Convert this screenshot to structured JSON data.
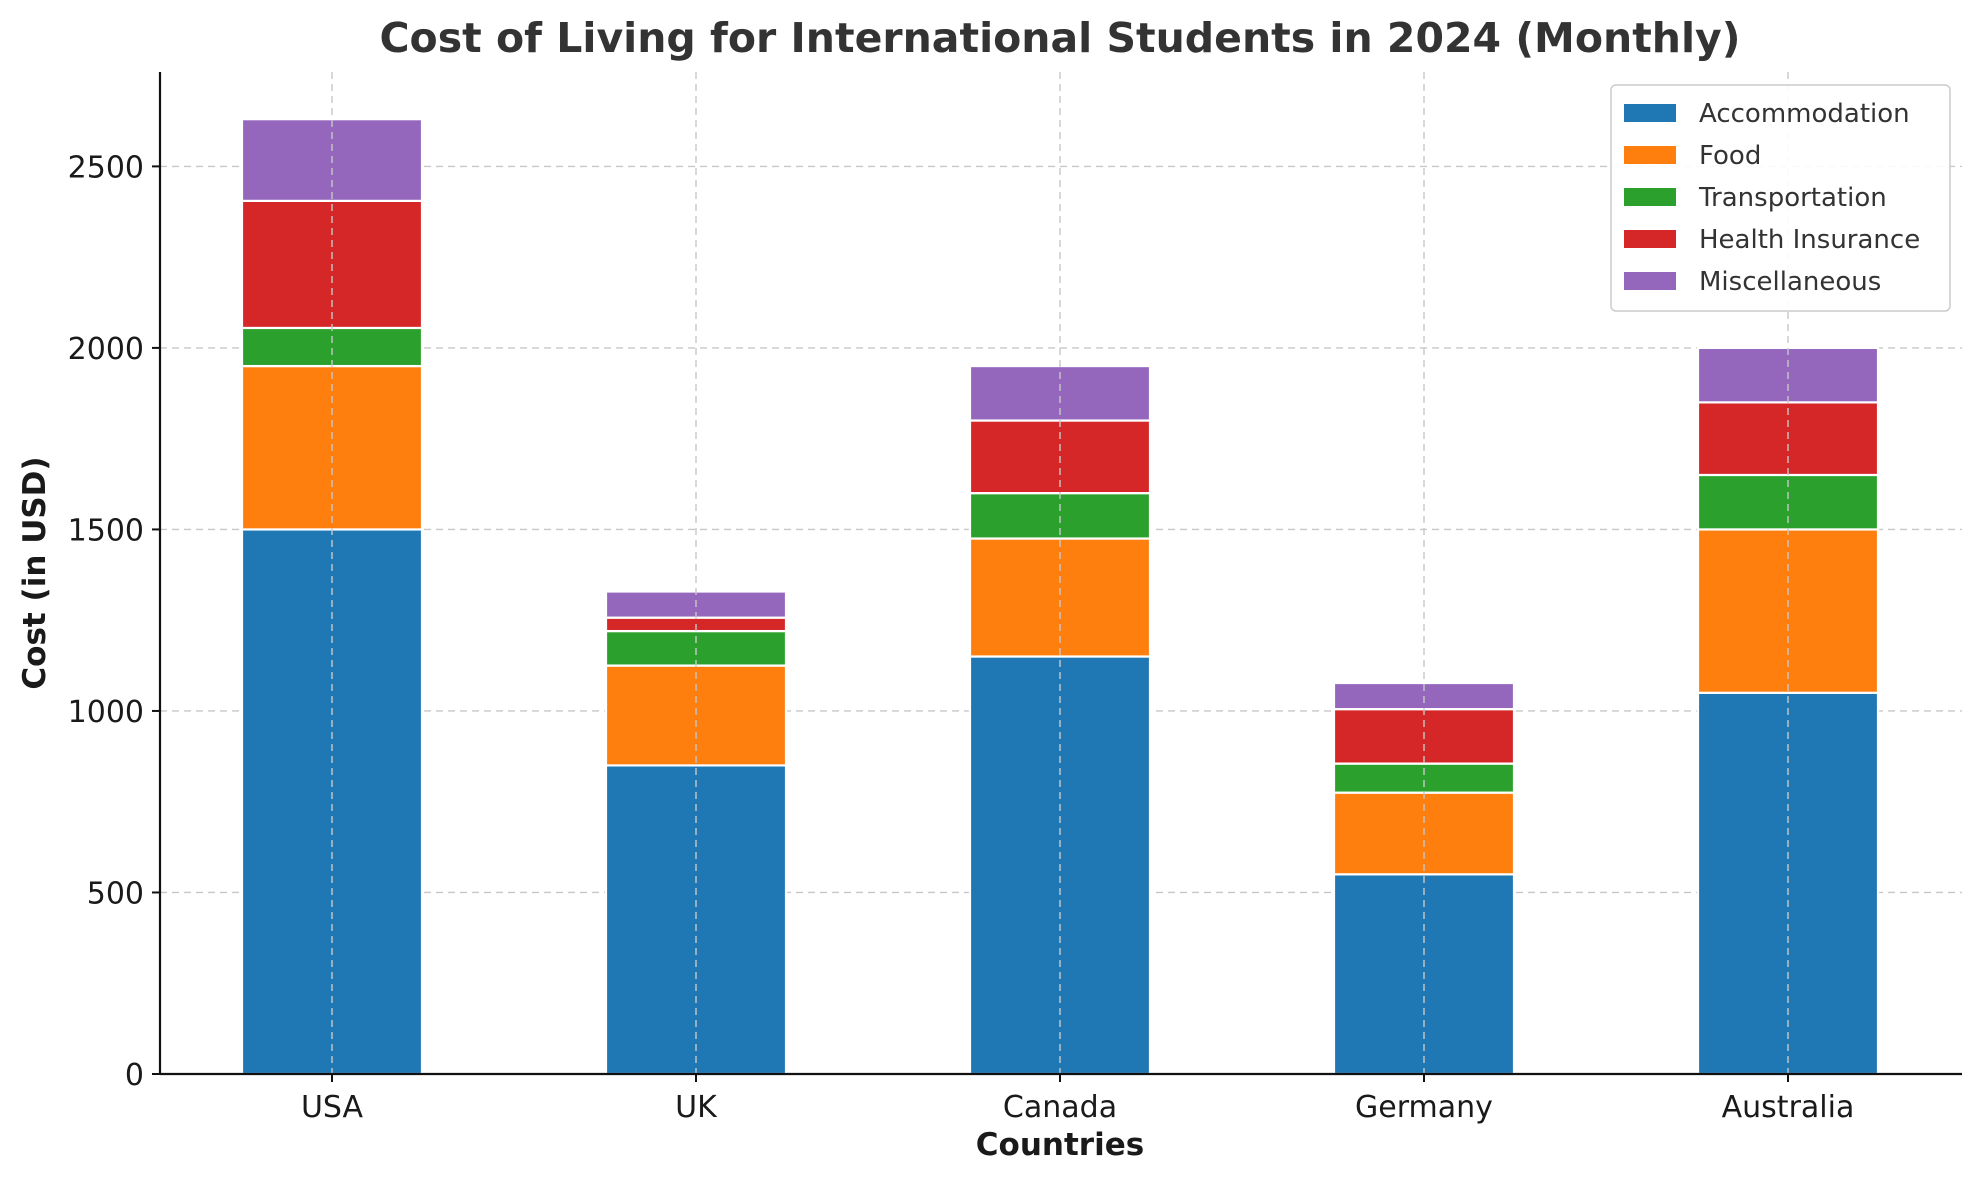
{
  "chart_data": {
    "type": "bar",
    "stacked": true,
    "title": "Cost of Living for International Students in 2024 (Monthly)",
    "xlabel": "Countries",
    "ylabel": "Cost (in USD)",
    "categories": [
      "USA",
      "UK",
      "Canada",
      "Germany",
      "Australia"
    ],
    "series": [
      {
        "name": "Accommodation",
        "color": "#1f77b4",
        "values": [
          1500,
          850,
          1150,
          550,
          1050
        ]
      },
      {
        "name": "Food",
        "color": "#ff7f0e",
        "values": [
          450,
          275,
          325,
          225,
          450
        ]
      },
      {
        "name": "Transportation",
        "color": "#2ca02c",
        "values": [
          105,
          95,
          125,
          80,
          150
        ]
      },
      {
        "name": "Health Insurance",
        "color": "#d62728",
        "values": [
          350,
          37,
          200,
          150,
          200
        ]
      },
      {
        "name": "Miscellaneous",
        "color": "#9467bd",
        "values": [
          225,
          72,
          150,
          72,
          150
        ]
      }
    ],
    "ylim": [
      0,
      2760
    ],
    "yticks": [
      0,
      500,
      1000,
      1500,
      2000,
      2500
    ],
    "grid": true,
    "legend_position": "top-right"
  }
}
